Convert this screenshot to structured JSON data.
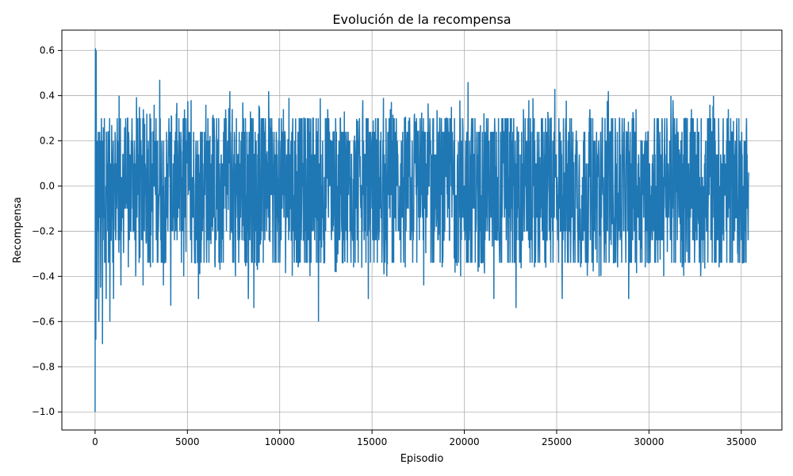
{
  "chart_data": {
    "type": "line",
    "title": "Evolución de la recompensa",
    "xlabel": "Episodio",
    "ylabel": "Recompensa",
    "xlim": [
      -1800,
      37200
    ],
    "ylim": [
      -1.08,
      0.69
    ],
    "x_ticks": [
      0,
      5000,
      10000,
      15000,
      20000,
      25000,
      30000,
      35000
    ],
    "x_tick_labels": [
      "0",
      "5000",
      "10000",
      "15000",
      "20000",
      "25000",
      "30000",
      "35000"
    ],
    "y_ticks": [
      -1.0,
      -0.8,
      -0.6,
      -0.4,
      -0.2,
      0.0,
      0.2,
      0.4,
      0.6
    ],
    "y_tick_labels": [
      "−1.0",
      "−0.8",
      "−0.6",
      "−0.4",
      "−0.2",
      "0.0",
      "0.2",
      "0.4",
      "0.6"
    ],
    "grid": true,
    "series_color": "#1f77b4",
    "series": [
      {
        "x_start": 0,
        "x_end": 35400,
        "values_approx": "noisy reward signal oscillating mostly between -0.35 and 0.32 around 0.0",
        "points": [
          [
            0,
            -1.0
          ],
          [
            20,
            0.61
          ],
          [
            40,
            -0.68
          ],
          [
            60,
            0.6
          ],
          [
            100,
            -0.5
          ],
          [
            150,
            0.18
          ],
          [
            200,
            -0.6
          ],
          [
            260,
            0.1
          ],
          [
            300,
            -0.45
          ],
          [
            400,
            -0.7
          ],
          [
            450,
            0.26
          ],
          [
            600,
            -0.5
          ],
          [
            700,
            0.24
          ],
          [
            800,
            -0.6
          ],
          [
            900,
            0.27
          ],
          [
            1000,
            -0.5
          ],
          [
            1100,
            0.2
          ],
          [
            1300,
            0.4
          ],
          [
            1400,
            -0.44
          ],
          [
            1600,
            0.26
          ],
          [
            1800,
            -0.36
          ],
          [
            2000,
            0.3
          ],
          [
            2200,
            -0.4
          ],
          [
            2400,
            0.35
          ],
          [
            2600,
            -0.44
          ],
          [
            2800,
            0.32
          ],
          [
            3000,
            -0.36
          ],
          [
            3200,
            0.36
          ],
          [
            3500,
            0.47
          ],
          [
            3700,
            -0.44
          ],
          [
            4000,
            0.3
          ],
          [
            4100,
            -0.53
          ],
          [
            4400,
            0.32
          ],
          [
            4800,
            -0.4
          ],
          [
            5200,
            0.38
          ],
          [
            5600,
            -0.5
          ],
          [
            6000,
            0.36
          ],
          [
            6500,
            -0.36
          ],
          [
            7000,
            0.3
          ],
          [
            7300,
            0.42
          ],
          [
            7600,
            -0.4
          ],
          [
            8000,
            0.37
          ],
          [
            8300,
            -0.5
          ],
          [
            8600,
            -0.54
          ],
          [
            9000,
            0.3
          ],
          [
            9400,
            0.42
          ],
          [
            9800,
            -0.34
          ],
          [
            10200,
            0.34
          ],
          [
            10500,
            0.39
          ],
          [
            11000,
            -0.36
          ],
          [
            11500,
            0.3
          ],
          [
            12100,
            -0.6
          ],
          [
            12600,
            0.34
          ],
          [
            13000,
            -0.38
          ],
          [
            13500,
            0.33
          ],
          [
            14000,
            -0.36
          ],
          [
            14500,
            0.38
          ],
          [
            14800,
            -0.5
          ],
          [
            15300,
            0.3
          ],
          [
            15800,
            -0.4
          ],
          [
            16200,
            0.3
          ],
          [
            16800,
            -0.36
          ],
          [
            17300,
            0.32
          ],
          [
            17800,
            -0.44
          ],
          [
            18300,
            0.3
          ],
          [
            18800,
            -0.36
          ],
          [
            19300,
            0.35
          ],
          [
            19800,
            -0.4
          ],
          [
            20200,
            0.46
          ],
          [
            20800,
            -0.36
          ],
          [
            21200,
            0.3
          ],
          [
            21600,
            -0.5
          ],
          [
            22200,
            0.3
          ],
          [
            22800,
            -0.54
          ],
          [
            23200,
            0.34
          ],
          [
            23800,
            -0.36
          ],
          [
            24400,
            0.3
          ],
          [
            24900,
            0.43
          ],
          [
            25300,
            -0.5
          ],
          [
            25800,
            0.3
          ],
          [
            26300,
            -0.36
          ],
          [
            26800,
            0.34
          ],
          [
            27300,
            -0.4
          ],
          [
            27800,
            0.42
          ],
          [
            28300,
            -0.36
          ],
          [
            28900,
            -0.5
          ],
          [
            29300,
            0.34
          ],
          [
            29800,
            -0.36
          ],
          [
            30300,
            0.3
          ],
          [
            30800,
            -0.4
          ],
          [
            31300,
            0.38
          ],
          [
            31800,
            -0.36
          ],
          [
            32300,
            0.34
          ],
          [
            32800,
            -0.4
          ],
          [
            33300,
            0.36
          ],
          [
            33800,
            -0.36
          ],
          [
            34300,
            0.34
          ],
          [
            34800,
            -0.3
          ],
          [
            35200,
            0.18
          ],
          [
            35400,
            0.06
          ]
        ]
      }
    ]
  }
}
